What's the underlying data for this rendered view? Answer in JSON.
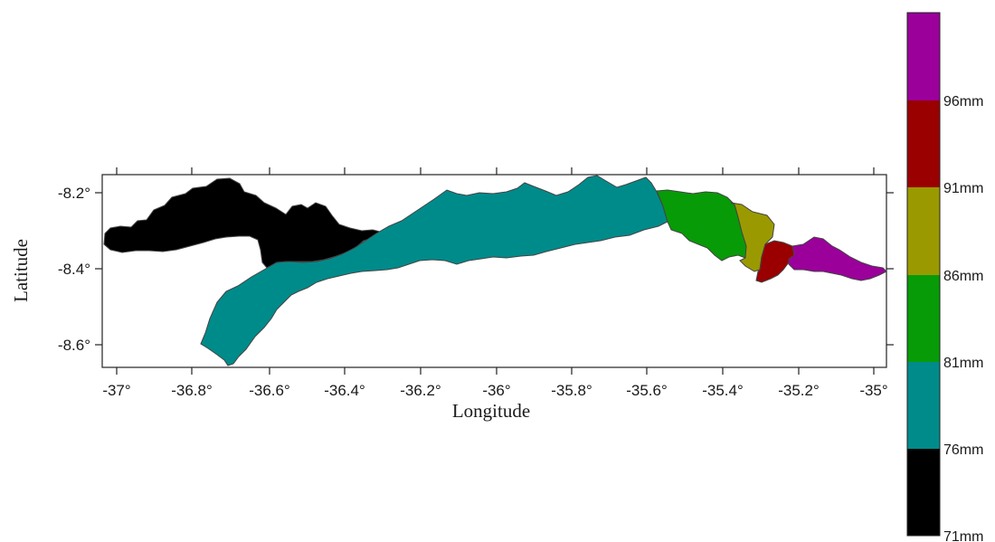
{
  "map": {
    "x_axis": {
      "title": "Longitude",
      "ticks": [
        "-37°",
        "-36.8°",
        "-36.6°",
        "-36.4°",
        "-36.2°",
        "-36°",
        "-35.8°",
        "-35.6°",
        "-35.4°",
        "-35.2°",
        "-35°"
      ]
    },
    "y_axis": {
      "title": "Latitude",
      "ticks": [
        "-8.2°",
        "-8.4°",
        "-8.6°"
      ]
    },
    "regions": [
      {
        "name": "71-76mm",
        "color": "#000000"
      },
      {
        "name": "76-81mm",
        "color": "#008b8b"
      },
      {
        "name": "81-86mm",
        "color": "#079b07"
      },
      {
        "name": "86-91mm",
        "color": "#9a9a00"
      },
      {
        "name": "91-96mm",
        "color": "#9a0000"
      },
      {
        "name": "96mm+",
        "color": "#9b009b"
      }
    ]
  },
  "legend": {
    "labels": [
      "96mm",
      "91mm",
      "86mm",
      "81mm",
      "76mm",
      "71mm"
    ],
    "colors": [
      "#9b009b",
      "#9a0000",
      "#9a9a00",
      "#079b07",
      "#008b8b",
      "#000000"
    ]
  }
}
